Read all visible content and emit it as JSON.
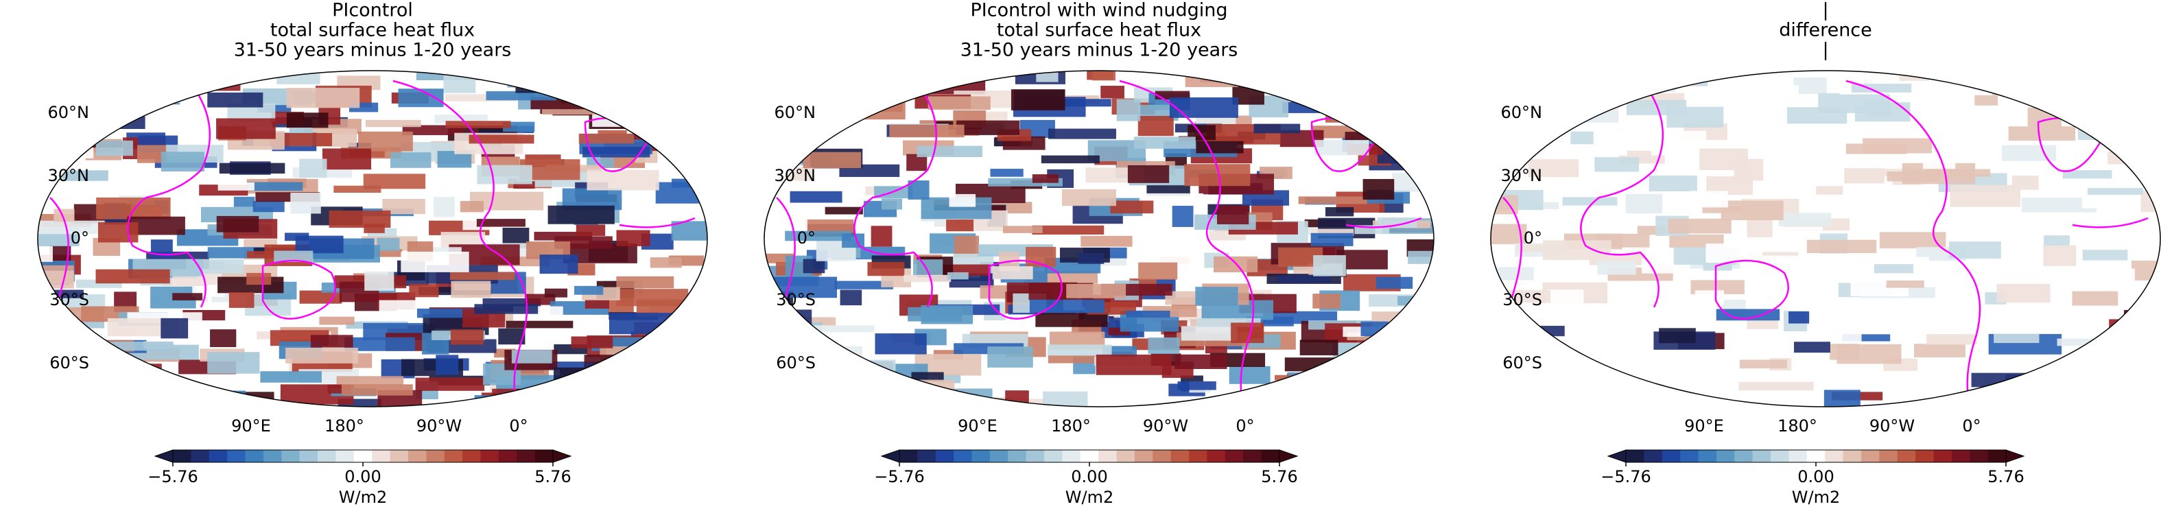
{
  "panels": [
    {
      "title": [
        "PIcontrol",
        "total surface heat flux",
        "31-50 years minus 1-20 years"
      ],
      "lat_labels": [
        "60°N",
        "30°N",
        "0°",
        "30°S",
        "60°S"
      ],
      "lon_labels": [
        "90°E",
        "180°",
        "90°W",
        "0°"
      ],
      "colorbar": {
        "ticks": [
          {
            "value": -5.76,
            "label": "−5.76"
          },
          {
            "value": 0,
            "label": "0.00"
          },
          5.76
        ],
        "label": "W/m2"
      }
    },
    {
      "title": [
        "PIcontrol with wind nudging",
        "total surface heat flux",
        "31-50 years minus 1-20 years"
      ],
      "lat_labels": [
        "60°N",
        "30°N",
        "0°",
        "30°S",
        "60°S"
      ],
      "lon_labels": [
        "90°E",
        "180°",
        "90°W",
        "0°"
      ],
      "colorbar": {
        "ticks": [
          {
            "value": -5.76,
            "label": "−5.76"
          },
          {
            "value": 0,
            "label": "0.00"
          },
          5.76
        ],
        "label": "W/m2"
      }
    },
    {
      "title": [
        "|",
        "difference",
        "|"
      ],
      "lat_labels": [
        "60°N",
        "30°N",
        "0°",
        "30°S",
        "60°S"
      ],
      "lon_labels": [
        "90°E",
        "180°",
        "90°W",
        "0°"
      ],
      "colorbar": {
        "ticks": [
          {
            "value": -5.76,
            "label": "−5.76"
          },
          {
            "value": 0,
            "label": "0.00"
          },
          5.76
        ],
        "label": "W/m2"
      }
    }
  ],
  "colormap": [
    "#181c43",
    "#1f2d6e",
    "#1e44a0",
    "#2a62b5",
    "#3d7ebd",
    "#5a98c3",
    "#7fb0cc",
    "#a4c6d8",
    "#c6dbe3",
    "#e4ecef",
    "#ffffff",
    "#f0e1dc",
    "#e3c3b6",
    "#d6a08d",
    "#c97e67",
    "#bd5b45",
    "#ad3b2d",
    "#951f22",
    "#761320",
    "#560e1b",
    "#3c0912"
  ]
}
